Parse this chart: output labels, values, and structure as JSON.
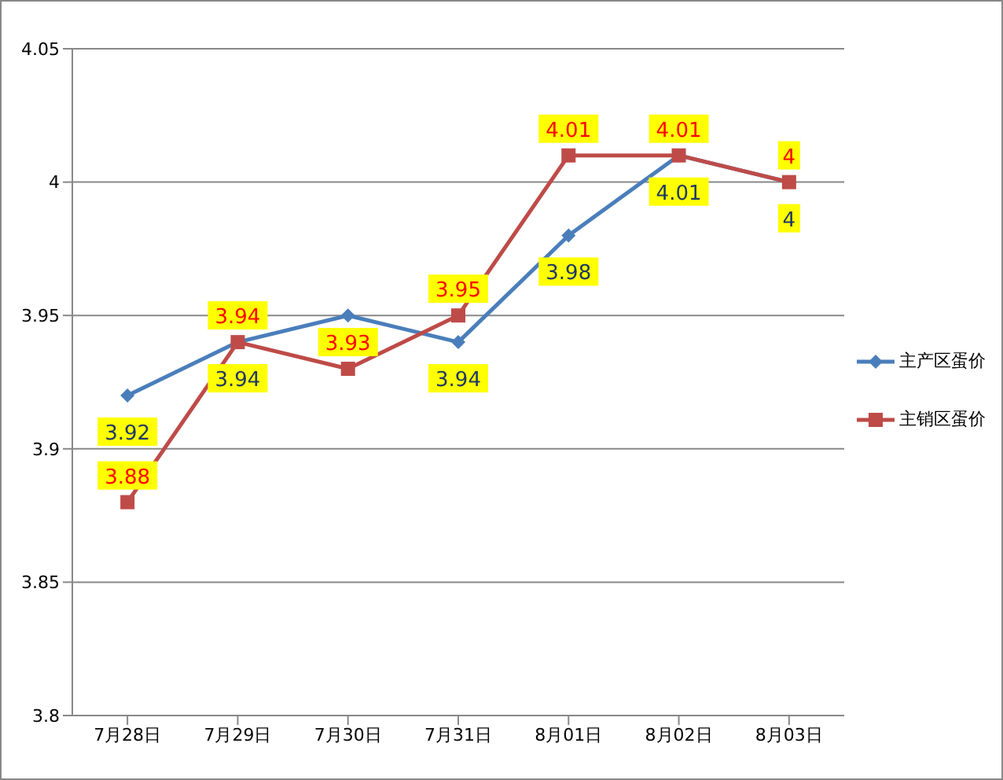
{
  "chart_data": {
    "type": "line",
    "categories": [
      "7月28日",
      "7月29日",
      "7月30日",
      "7月31日",
      "8月01日",
      "8月02日",
      "8月03日"
    ],
    "series": [
      {
        "name": "主产区蛋价",
        "color": "#4a7ebb",
        "marker": "diamond",
        "values": [
          3.92,
          3.94,
          3.95,
          3.94,
          3.98,
          4.01,
          4
        ],
        "value_labels": [
          "3.92",
          "3.94",
          null,
          "3.94",
          "3.98",
          "4.01",
          "4"
        ]
      },
      {
        "name": "主销区蛋价",
        "color": "#be4b48",
        "marker": "square",
        "values": [
          3.88,
          3.94,
          3.93,
          3.95,
          4.01,
          4.01,
          4
        ]
      }
    ],
    "ylim": [
      3.8,
      4.05
    ],
    "yticks": [
      3.8,
      3.85,
      3.9,
      3.95,
      4,
      4.05
    ],
    "grid": "y",
    "legend": "right",
    "data_labels": true
  }
}
